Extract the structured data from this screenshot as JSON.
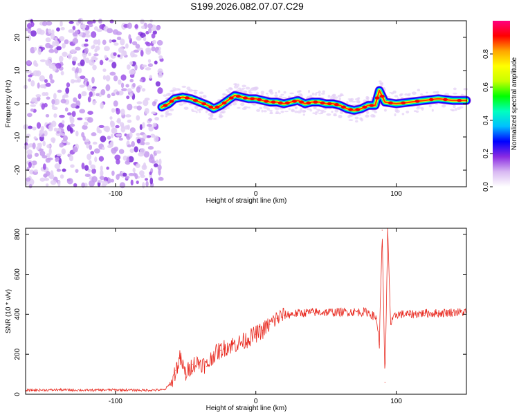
{
  "title": "S199.2026.082.07.07.C29",
  "chart_data": [
    {
      "type": "heatmap",
      "name": "spectrogram",
      "xlabel": "Height of straight line (km)",
      "ylabel": "Frequency (Hz)",
      "xlim": [
        -164,
        150
      ],
      "ylim": [
        -25,
        25
      ],
      "xticks": [
        -100,
        0,
        100
      ],
      "yticks": [
        -20,
        -10,
        0,
        10,
        20
      ],
      "noise_region": {
        "x_from": -164,
        "x_to": -67
      },
      "signal_line": {
        "x": [
          -67,
          -62,
          -58,
          -52,
          -46,
          -40,
          -34,
          -30,
          -25,
          -20,
          -15,
          -10,
          -5,
          0,
          5,
          10,
          15,
          20,
          25,
          30,
          35,
          40,
          45,
          50,
          55,
          60,
          65,
          70,
          75,
          80,
          85,
          88,
          92,
          100,
          110,
          120,
          130,
          140,
          150
        ],
        "y": [
          -1,
          0,
          1.5,
          2,
          1.5,
          0.5,
          -0.5,
          -1.5,
          -0.5,
          1,
          2.5,
          2,
          1.5,
          1.5,
          1,
          0.5,
          0.5,
          0,
          0.5,
          1,
          0,
          0.5,
          0.5,
          0,
          0,
          -0.5,
          -1.5,
          -2,
          -1.5,
          -0.5,
          -0.5,
          4,
          0.5,
          0,
          0.5,
          1,
          1.5,
          1,
          1
        ]
      },
      "colorbar": {
        "label": "Normalized spectral amplitude",
        "ticks": [
          0.0,
          0.2,
          0.4,
          0.6,
          0.8
        ],
        "range": [
          0,
          1
        ],
        "colors": [
          "#ffffff",
          "#d8b8f2",
          "#8a2be2",
          "#0000ff",
          "#00bfff",
          "#00ffc0",
          "#00ff00",
          "#c8ff00",
          "#ffff00",
          "#ffa500",
          "#ff0000",
          "#ff0080"
        ]
      }
    },
    {
      "type": "line",
      "name": "snr",
      "xlabel": "Height of straight line (km)",
      "ylabel": "SNR (10 * v/v)",
      "xlim": [
        -164,
        150
      ],
      "ylim": [
        0,
        830
      ],
      "xticks": [
        -100,
        0,
        100
      ],
      "yticks": [
        0,
        200,
        400,
        600,
        800
      ],
      "color": "#e8281e",
      "series": [
        {
          "name": "SNR",
          "x": [
            -164,
            -140,
            -120,
            -100,
            -80,
            -65,
            -60,
            -57,
            -54,
            -50,
            -45,
            -40,
            -35,
            -30,
            -25,
            -20,
            -15,
            -10,
            -5,
            0,
            5,
            10,
            15,
            20,
            25,
            30,
            40,
            50,
            60,
            70,
            80,
            86,
            88,
            90,
            92,
            94,
            96,
            100,
            110,
            120,
            130,
            140,
            150
          ],
          "values": [
            20,
            22,
            20,
            22,
            20,
            22,
            60,
            120,
            180,
            100,
            150,
            160,
            140,
            200,
            220,
            240,
            250,
            260,
            280,
            300,
            320,
            350,
            380,
            395,
            400,
            405,
            410,
            410,
            410,
            412,
            410,
            380,
            250,
            820,
            60,
            830,
            350,
            400,
            400,
            405,
            405,
            410,
            410
          ]
        }
      ]
    }
  ]
}
